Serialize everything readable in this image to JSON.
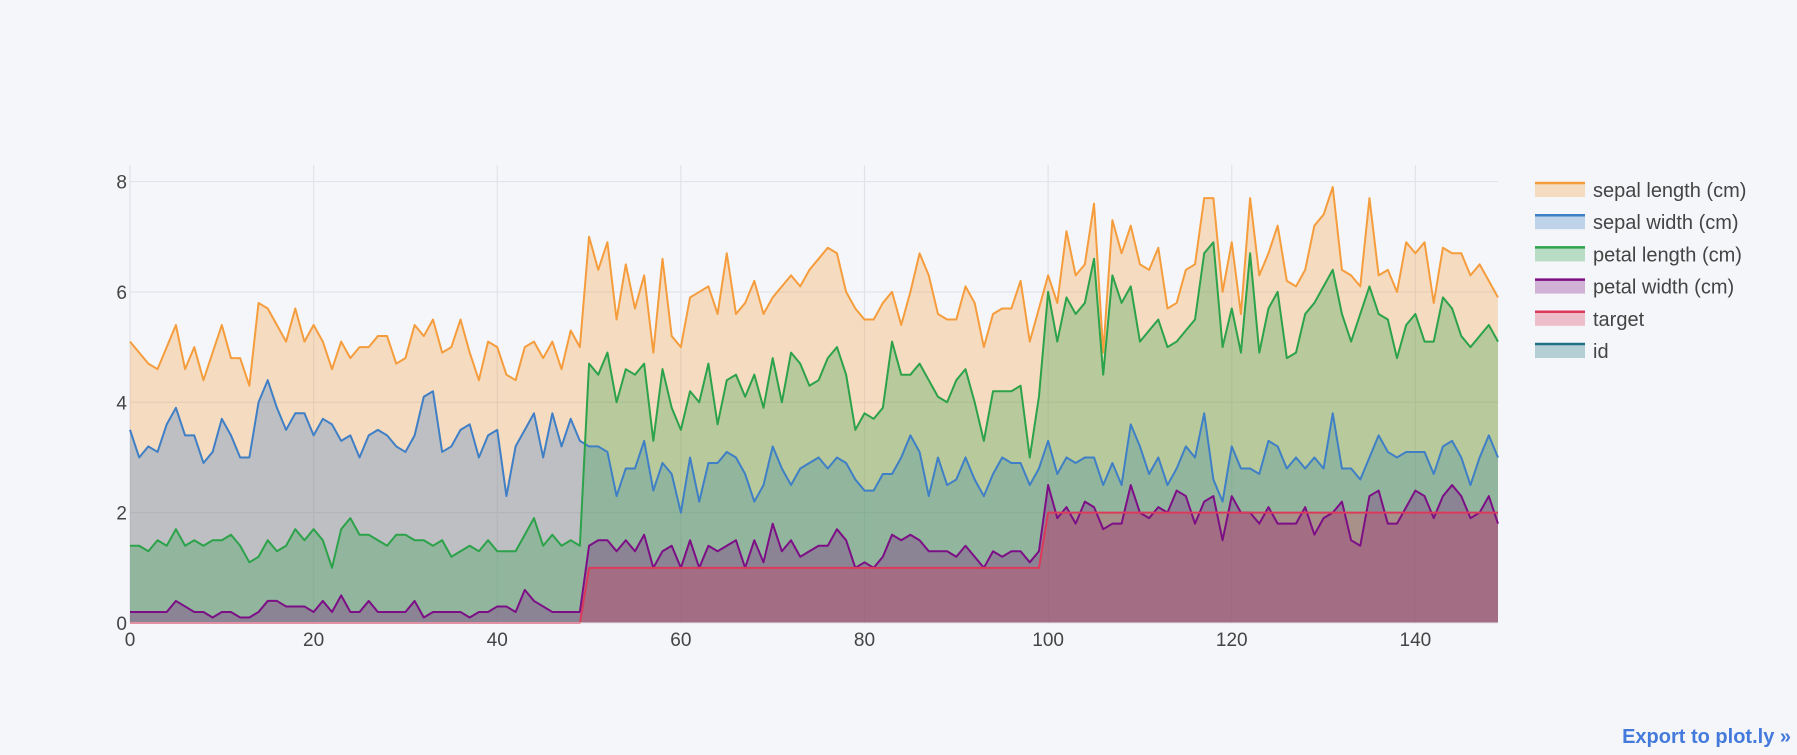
{
  "chart_data": {
    "type": "area",
    "title": "",
    "xlabel": "",
    "ylabel": "",
    "xlim": [
      0,
      149
    ],
    "ylim": [
      0,
      8.3
    ],
    "x_ticks": [
      0,
      20,
      40,
      60,
      80,
      100,
      120,
      140
    ],
    "y_ticks": [
      0,
      2,
      4,
      6,
      8
    ],
    "grid": true,
    "legend_position": "top-right",
    "x": "0..149",
    "series": [
      {
        "name": "sepal length (cm)",
        "color": "#f59d3d",
        "values": [
          5.1,
          4.9,
          4.7,
          4.6,
          5.0,
          5.4,
          4.6,
          5.0,
          4.4,
          4.9,
          5.4,
          4.8,
          4.8,
          4.3,
          5.8,
          5.7,
          5.4,
          5.1,
          5.7,
          5.1,
          5.4,
          5.1,
          4.6,
          5.1,
          4.8,
          5.0,
          5.0,
          5.2,
          5.2,
          4.7,
          4.8,
          5.4,
          5.2,
          5.5,
          4.9,
          5.0,
          5.5,
          4.9,
          4.4,
          5.1,
          5.0,
          4.5,
          4.4,
          5.0,
          5.1,
          4.8,
          5.1,
          4.6,
          5.3,
          5.0,
          7.0,
          6.4,
          6.9,
          5.5,
          6.5,
          5.7,
          6.3,
          4.9,
          6.6,
          5.2,
          5.0,
          5.9,
          6.0,
          6.1,
          5.6,
          6.7,
          5.6,
          5.8,
          6.2,
          5.6,
          5.9,
          6.1,
          6.3,
          6.1,
          6.4,
          6.6,
          6.8,
          6.7,
          6.0,
          5.7,
          5.5,
          5.5,
          5.8,
          6.0,
          5.4,
          6.0,
          6.7,
          6.3,
          5.6,
          5.5,
          5.5,
          6.1,
          5.8,
          5.0,
          5.6,
          5.7,
          5.7,
          6.2,
          5.1,
          5.7,
          6.3,
          5.8,
          7.1,
          6.3,
          6.5,
          7.6,
          4.9,
          7.3,
          6.7,
          7.2,
          6.5,
          6.4,
          6.8,
          5.7,
          5.8,
          6.4,
          6.5,
          7.7,
          7.7,
          6.0,
          6.9,
          5.6,
          7.7,
          6.3,
          6.7,
          7.2,
          6.2,
          6.1,
          6.4,
          7.2,
          7.4,
          7.9,
          6.4,
          6.3,
          6.1,
          7.7,
          6.3,
          6.4,
          6.0,
          6.9,
          6.7,
          6.9,
          5.8,
          6.8,
          6.7,
          6.7,
          6.3,
          6.5,
          6.2,
          5.9
        ]
      },
      {
        "name": "sepal width (cm)",
        "color": "#3f7fc6",
        "values": [
          3.5,
          3.0,
          3.2,
          3.1,
          3.6,
          3.9,
          3.4,
          3.4,
          2.9,
          3.1,
          3.7,
          3.4,
          3.0,
          3.0,
          4.0,
          4.4,
          3.9,
          3.5,
          3.8,
          3.8,
          3.4,
          3.7,
          3.6,
          3.3,
          3.4,
          3.0,
          3.4,
          3.5,
          3.4,
          3.2,
          3.1,
          3.4,
          4.1,
          4.2,
          3.1,
          3.2,
          3.5,
          3.6,
          3.0,
          3.4,
          3.5,
          2.3,
          3.2,
          3.5,
          3.8,
          3.0,
          3.8,
          3.2,
          3.7,
          3.3,
          3.2,
          3.2,
          3.1,
          2.3,
          2.8,
          2.8,
          3.3,
          2.4,
          2.9,
          2.7,
          2.0,
          3.0,
          2.2,
          2.9,
          2.9,
          3.1,
          3.0,
          2.7,
          2.2,
          2.5,
          3.2,
          2.8,
          2.5,
          2.8,
          2.9,
          3.0,
          2.8,
          3.0,
          2.9,
          2.6,
          2.4,
          2.4,
          2.7,
          2.7,
          3.0,
          3.4,
          3.1,
          2.3,
          3.0,
          2.5,
          2.6,
          3.0,
          2.6,
          2.3,
          2.7,
          3.0,
          2.9,
          2.9,
          2.5,
          2.8,
          3.3,
          2.7,
          3.0,
          2.9,
          3.0,
          3.0,
          2.5,
          2.9,
          2.5,
          3.6,
          3.2,
          2.7,
          3.0,
          2.5,
          2.8,
          3.2,
          3.0,
          3.8,
          2.6,
          2.2,
          3.2,
          2.8,
          2.8,
          2.7,
          3.3,
          3.2,
          2.8,
          3.0,
          2.8,
          3.0,
          2.8,
          3.8,
          2.8,
          2.8,
          2.6,
          3.0,
          3.4,
          3.1,
          3.0,
          3.1,
          3.1,
          3.1,
          2.7,
          3.2,
          3.3,
          3.0,
          2.5,
          3.0,
          3.4,
          3.0
        ]
      },
      {
        "name": "petal length (cm)",
        "color": "#2ca24a",
        "values": [
          1.4,
          1.4,
          1.3,
          1.5,
          1.4,
          1.7,
          1.4,
          1.5,
          1.4,
          1.5,
          1.5,
          1.6,
          1.4,
          1.1,
          1.2,
          1.5,
          1.3,
          1.4,
          1.7,
          1.5,
          1.7,
          1.5,
          1.0,
          1.7,
          1.9,
          1.6,
          1.6,
          1.5,
          1.4,
          1.6,
          1.6,
          1.5,
          1.5,
          1.4,
          1.5,
          1.2,
          1.3,
          1.4,
          1.3,
          1.5,
          1.3,
          1.3,
          1.3,
          1.6,
          1.9,
          1.4,
          1.6,
          1.4,
          1.5,
          1.4,
          4.7,
          4.5,
          4.9,
          4.0,
          4.6,
          4.5,
          4.7,
          3.3,
          4.6,
          3.9,
          3.5,
          4.2,
          4.0,
          4.7,
          3.6,
          4.4,
          4.5,
          4.1,
          4.5,
          3.9,
          4.8,
          4.0,
          4.9,
          4.7,
          4.3,
          4.4,
          4.8,
          5.0,
          4.5,
          3.5,
          3.8,
          3.7,
          3.9,
          5.1,
          4.5,
          4.5,
          4.7,
          4.4,
          4.1,
          4.0,
          4.4,
          4.6,
          4.0,
          3.3,
          4.2,
          4.2,
          4.2,
          4.3,
          3.0,
          4.1,
          6.0,
          5.1,
          5.9,
          5.6,
          5.8,
          6.6,
          4.5,
          6.3,
          5.8,
          6.1,
          5.1,
          5.3,
          5.5,
          5.0,
          5.1,
          5.3,
          5.5,
          6.7,
          6.9,
          5.0,
          5.7,
          4.9,
          6.7,
          4.9,
          5.7,
          6.0,
          4.8,
          4.9,
          5.6,
          5.8,
          6.1,
          6.4,
          5.6,
          5.1,
          5.6,
          6.1,
          5.6,
          5.5,
          4.8,
          5.4,
          5.6,
          5.1,
          5.1,
          5.9,
          5.7,
          5.2,
          5.0,
          5.2,
          5.4,
          5.1
        ]
      },
      {
        "name": "petal width (cm)",
        "color": "#7d0f86",
        "values": [
          0.2,
          0.2,
          0.2,
          0.2,
          0.2,
          0.4,
          0.3,
          0.2,
          0.2,
          0.1,
          0.2,
          0.2,
          0.1,
          0.1,
          0.2,
          0.4,
          0.4,
          0.3,
          0.3,
          0.3,
          0.2,
          0.4,
          0.2,
          0.5,
          0.2,
          0.2,
          0.4,
          0.2,
          0.2,
          0.2,
          0.2,
          0.4,
          0.1,
          0.2,
          0.2,
          0.2,
          0.2,
          0.1,
          0.2,
          0.2,
          0.3,
          0.3,
          0.2,
          0.6,
          0.4,
          0.3,
          0.2,
          0.2,
          0.2,
          0.2,
          1.4,
          1.5,
          1.5,
          1.3,
          1.5,
          1.3,
          1.6,
          1.0,
          1.3,
          1.4,
          1.0,
          1.5,
          1.0,
          1.4,
          1.3,
          1.4,
          1.5,
          1.0,
          1.5,
          1.1,
          1.8,
          1.3,
          1.5,
          1.2,
          1.3,
          1.4,
          1.4,
          1.7,
          1.5,
          1.0,
          1.1,
          1.0,
          1.2,
          1.6,
          1.5,
          1.6,
          1.5,
          1.3,
          1.3,
          1.3,
          1.2,
          1.4,
          1.2,
          1.0,
          1.3,
          1.2,
          1.3,
          1.3,
          1.1,
          1.3,
          2.5,
          1.9,
          2.1,
          1.8,
          2.2,
          2.1,
          1.7,
          1.8,
          1.8,
          2.5,
          2.0,
          1.9,
          2.1,
          2.0,
          2.4,
          2.3,
          1.8,
          2.2,
          2.3,
          1.5,
          2.3,
          2.0,
          2.0,
          1.8,
          2.1,
          1.8,
          1.8,
          1.8,
          2.1,
          1.6,
          1.9,
          2.0,
          2.2,
          1.5,
          1.4,
          2.3,
          2.4,
          1.8,
          1.8,
          2.1,
          2.4,
          2.3,
          1.9,
          2.3,
          2.5,
          2.3,
          1.9,
          2.0,
          2.3,
          1.8
        ]
      },
      {
        "name": "target",
        "color": "#dc3a5a",
        "values": [
          0,
          0,
          0,
          0,
          0,
          0,
          0,
          0,
          0,
          0,
          0,
          0,
          0,
          0,
          0,
          0,
          0,
          0,
          0,
          0,
          0,
          0,
          0,
          0,
          0,
          0,
          0,
          0,
          0,
          0,
          0,
          0,
          0,
          0,
          0,
          0,
          0,
          0,
          0,
          0,
          0,
          0,
          0,
          0,
          0,
          0,
          0,
          0,
          0,
          0,
          1,
          1,
          1,
          1,
          1,
          1,
          1,
          1,
          1,
          1,
          1,
          1,
          1,
          1,
          1,
          1,
          1,
          1,
          1,
          1,
          1,
          1,
          1,
          1,
          1,
          1,
          1,
          1,
          1,
          1,
          1,
          1,
          1,
          1,
          1,
          1,
          1,
          1,
          1,
          1,
          1,
          1,
          1,
          1,
          1,
          1,
          1,
          1,
          1,
          1,
          2,
          2,
          2,
          2,
          2,
          2,
          2,
          2,
          2,
          2,
          2,
          2,
          2,
          2,
          2,
          2,
          2,
          2,
          2,
          2,
          2,
          2,
          2,
          2,
          2,
          2,
          2,
          2,
          2,
          2,
          2,
          2,
          2,
          2,
          2,
          2,
          2,
          2,
          2,
          2,
          2,
          2,
          2,
          2,
          2,
          2,
          2,
          2,
          2,
          2
        ]
      },
      {
        "name": "id",
        "color": "#1f6f85",
        "values": []
      }
    ]
  },
  "export_link": {
    "label": "Export to plot.ly »"
  }
}
